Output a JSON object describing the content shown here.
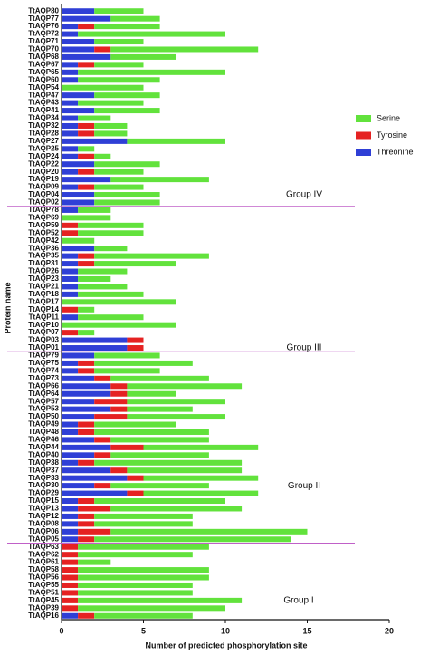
{
  "chart_data": {
    "type": "stacked_barh",
    "x_label": "Number of predicted phosphorylation site",
    "y_label": "Protein name",
    "categories": [
      "TtAQP80",
      "TtAQP77",
      "TtAQP76",
      "TtAQP72",
      "TtAQP71",
      "TtAQP70",
      "TtAQP68",
      "TtAQP67",
      "TtAQP65",
      "TtAQP60",
      "TtAQP54",
      "TtAQP47",
      "TtAQP43",
      "TtAQP41",
      "TtAQP34",
      "TtAQP32",
      "TtAQP28",
      "TtAQP27",
      "TtAQP25",
      "TtAQP24",
      "TtAQP22",
      "TtAQP20",
      "TtAQP19",
      "TtAQP09",
      "TtAQP04",
      "TtAQP02",
      "TtAQP78",
      "TtAQP69",
      "TtAQP59",
      "TtAQP52",
      "TtAQP42",
      "TtAQP36",
      "TtAQP35",
      "TtAQP31",
      "TtAQP26",
      "TtAQP23",
      "TtAQP21",
      "TtAQP18",
      "TtAQP17",
      "TtAQP14",
      "TtAQP11",
      "TtAQP10",
      "TtAQP07",
      "TtAQP03",
      "TtAQP01",
      "TtAQP79",
      "TtAQP75",
      "TtAQP74",
      "TtAQP73",
      "TtAQP66",
      "TtAQP64",
      "TtAQP57",
      "TtAQP53",
      "TtAQP50",
      "TtAQP49",
      "TtAQP48",
      "TtAQP46",
      "TtAQP44",
      "TtAQP40",
      "TtAQP38",
      "TtAQP37",
      "TtAQP33",
      "TtAQP30",
      "TtAQP29",
      "TtAQP15",
      "TtAQP13",
      "TtAQP12",
      "TtAQP08",
      "TtAQP06",
      "TtAQP05",
      "TtAQP63",
      "TtAQP62",
      "TtAQP61",
      "TtAQP58",
      "TtAQP56",
      "TtAQP55",
      "TtAQP51",
      "TtAQP45",
      "TtAQP39",
      "TtAQP16"
    ],
    "series": [
      {
        "name": "Threonine",
        "color": "#2f3fd6",
        "values": [
          2,
          3,
          1,
          1,
          2,
          2,
          3,
          1,
          1,
          1,
          0,
          2,
          1,
          2,
          1,
          1,
          1,
          4,
          1,
          1,
          2,
          1,
          3,
          1,
          2,
          2,
          1,
          0,
          0,
          0,
          0,
          2,
          1,
          1,
          1,
          1,
          1,
          1,
          0,
          0,
          1,
          0,
          0,
          4,
          4,
          2,
          1,
          1,
          2,
          3,
          3,
          2,
          3,
          2,
          1,
          1,
          2,
          3,
          2,
          1,
          3,
          4,
          2,
          4,
          1,
          1,
          1,
          1,
          1,
          1,
          0,
          0,
          0,
          0,
          0,
          0,
          0,
          0,
          0,
          1
        ]
      },
      {
        "name": "Tyrosine",
        "color": "#e52222",
        "values": [
          0,
          0,
          1,
          0,
          0,
          1,
          0,
          1,
          0,
          0,
          0,
          0,
          0,
          0,
          0,
          1,
          1,
          0,
          0,
          1,
          0,
          1,
          0,
          1,
          0,
          0,
          0,
          0,
          1,
          1,
          0,
          0,
          1,
          1,
          0,
          0,
          0,
          0,
          0,
          1,
          0,
          0,
          1,
          1,
          1,
          0,
          1,
          1,
          1,
          1,
          1,
          2,
          1,
          2,
          1,
          1,
          1,
          2,
          1,
          1,
          1,
          1,
          1,
          1,
          1,
          2,
          1,
          1,
          2,
          1,
          1,
          1,
          1,
          1,
          1,
          1,
          1,
          1,
          1,
          1
        ]
      },
      {
        "name": "Serine",
        "color": "#62e23c",
        "values": [
          3,
          3,
          4,
          9,
          3,
          9,
          4,
          3,
          9,
          5,
          5,
          4,
          4,
          4,
          2,
          2,
          2,
          6,
          1,
          1,
          4,
          3,
          6,
          3,
          4,
          4,
          2,
          3,
          4,
          4,
          2,
          2,
          7,
          5,
          3,
          2,
          3,
          4,
          7,
          1,
          4,
          7,
          1,
          0,
          0,
          4,
          6,
          4,
          6,
          7,
          3,
          6,
          4,
          6,
          5,
          7,
          6,
          7,
          6,
          9,
          7,
          7,
          6,
          7,
          8,
          8,
          6,
          6,
          12,
          12,
          8,
          7,
          2,
          8,
          8,
          7,
          7,
          10,
          9,
          6
        ]
      }
    ],
    "annotations": [
      "Group IV",
      "Group III",
      "Group II",
      "Group I"
    ],
    "xlim": [
      0,
      20
    ],
    "xticks": [
      0,
      5,
      10,
      15,
      20
    ],
    "legend": "upper right"
  }
}
